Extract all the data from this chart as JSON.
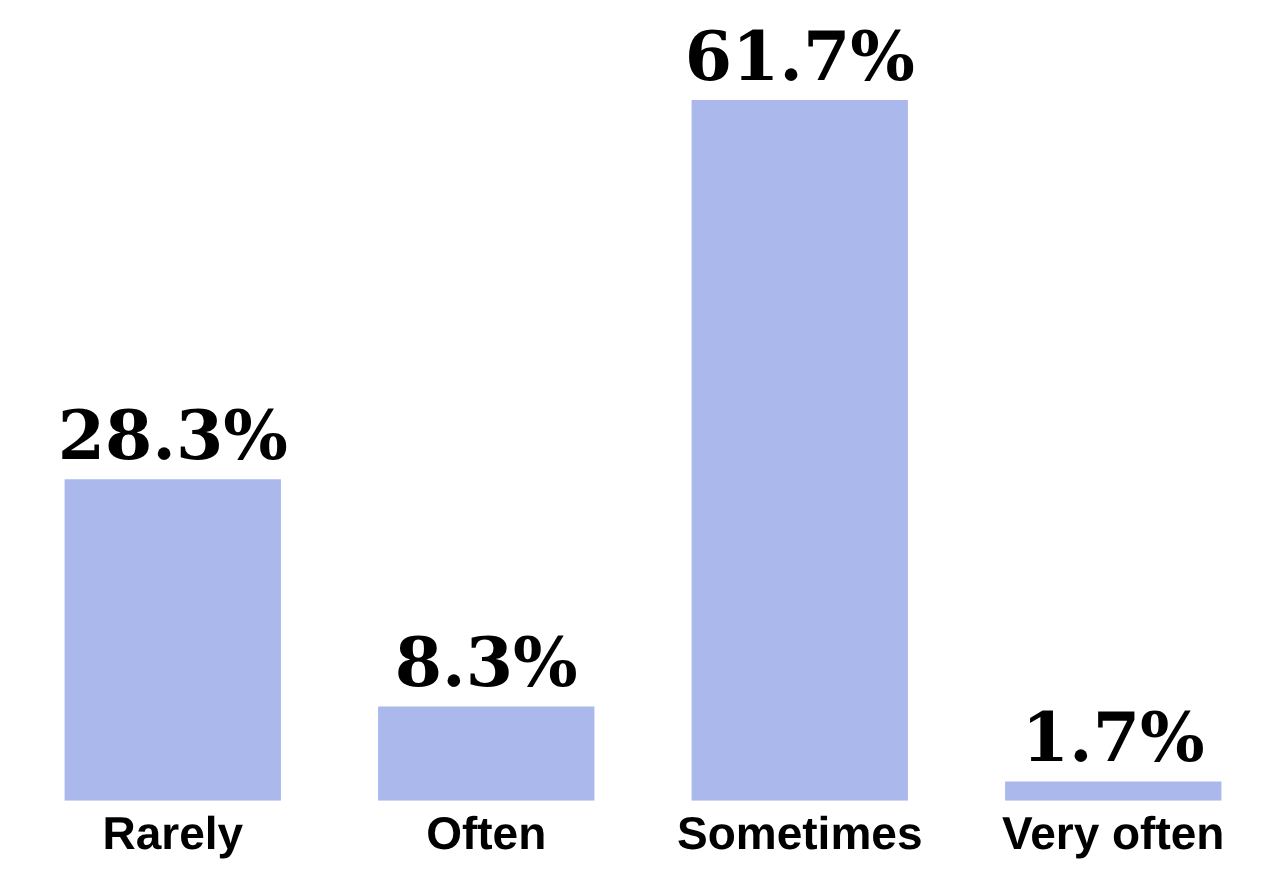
{
  "chart_data": {
    "type": "bar",
    "categories": [
      "Rarely",
      "Often",
      "Sometimes",
      "Very often"
    ],
    "values": [
      28.3,
      8.3,
      61.7,
      1.7
    ],
    "value_labels": [
      "28.3%",
      "8.3%",
      "61.7%",
      "1.7%"
    ],
    "color": "#aab8ec",
    "grid": false,
    "legend": false
  }
}
